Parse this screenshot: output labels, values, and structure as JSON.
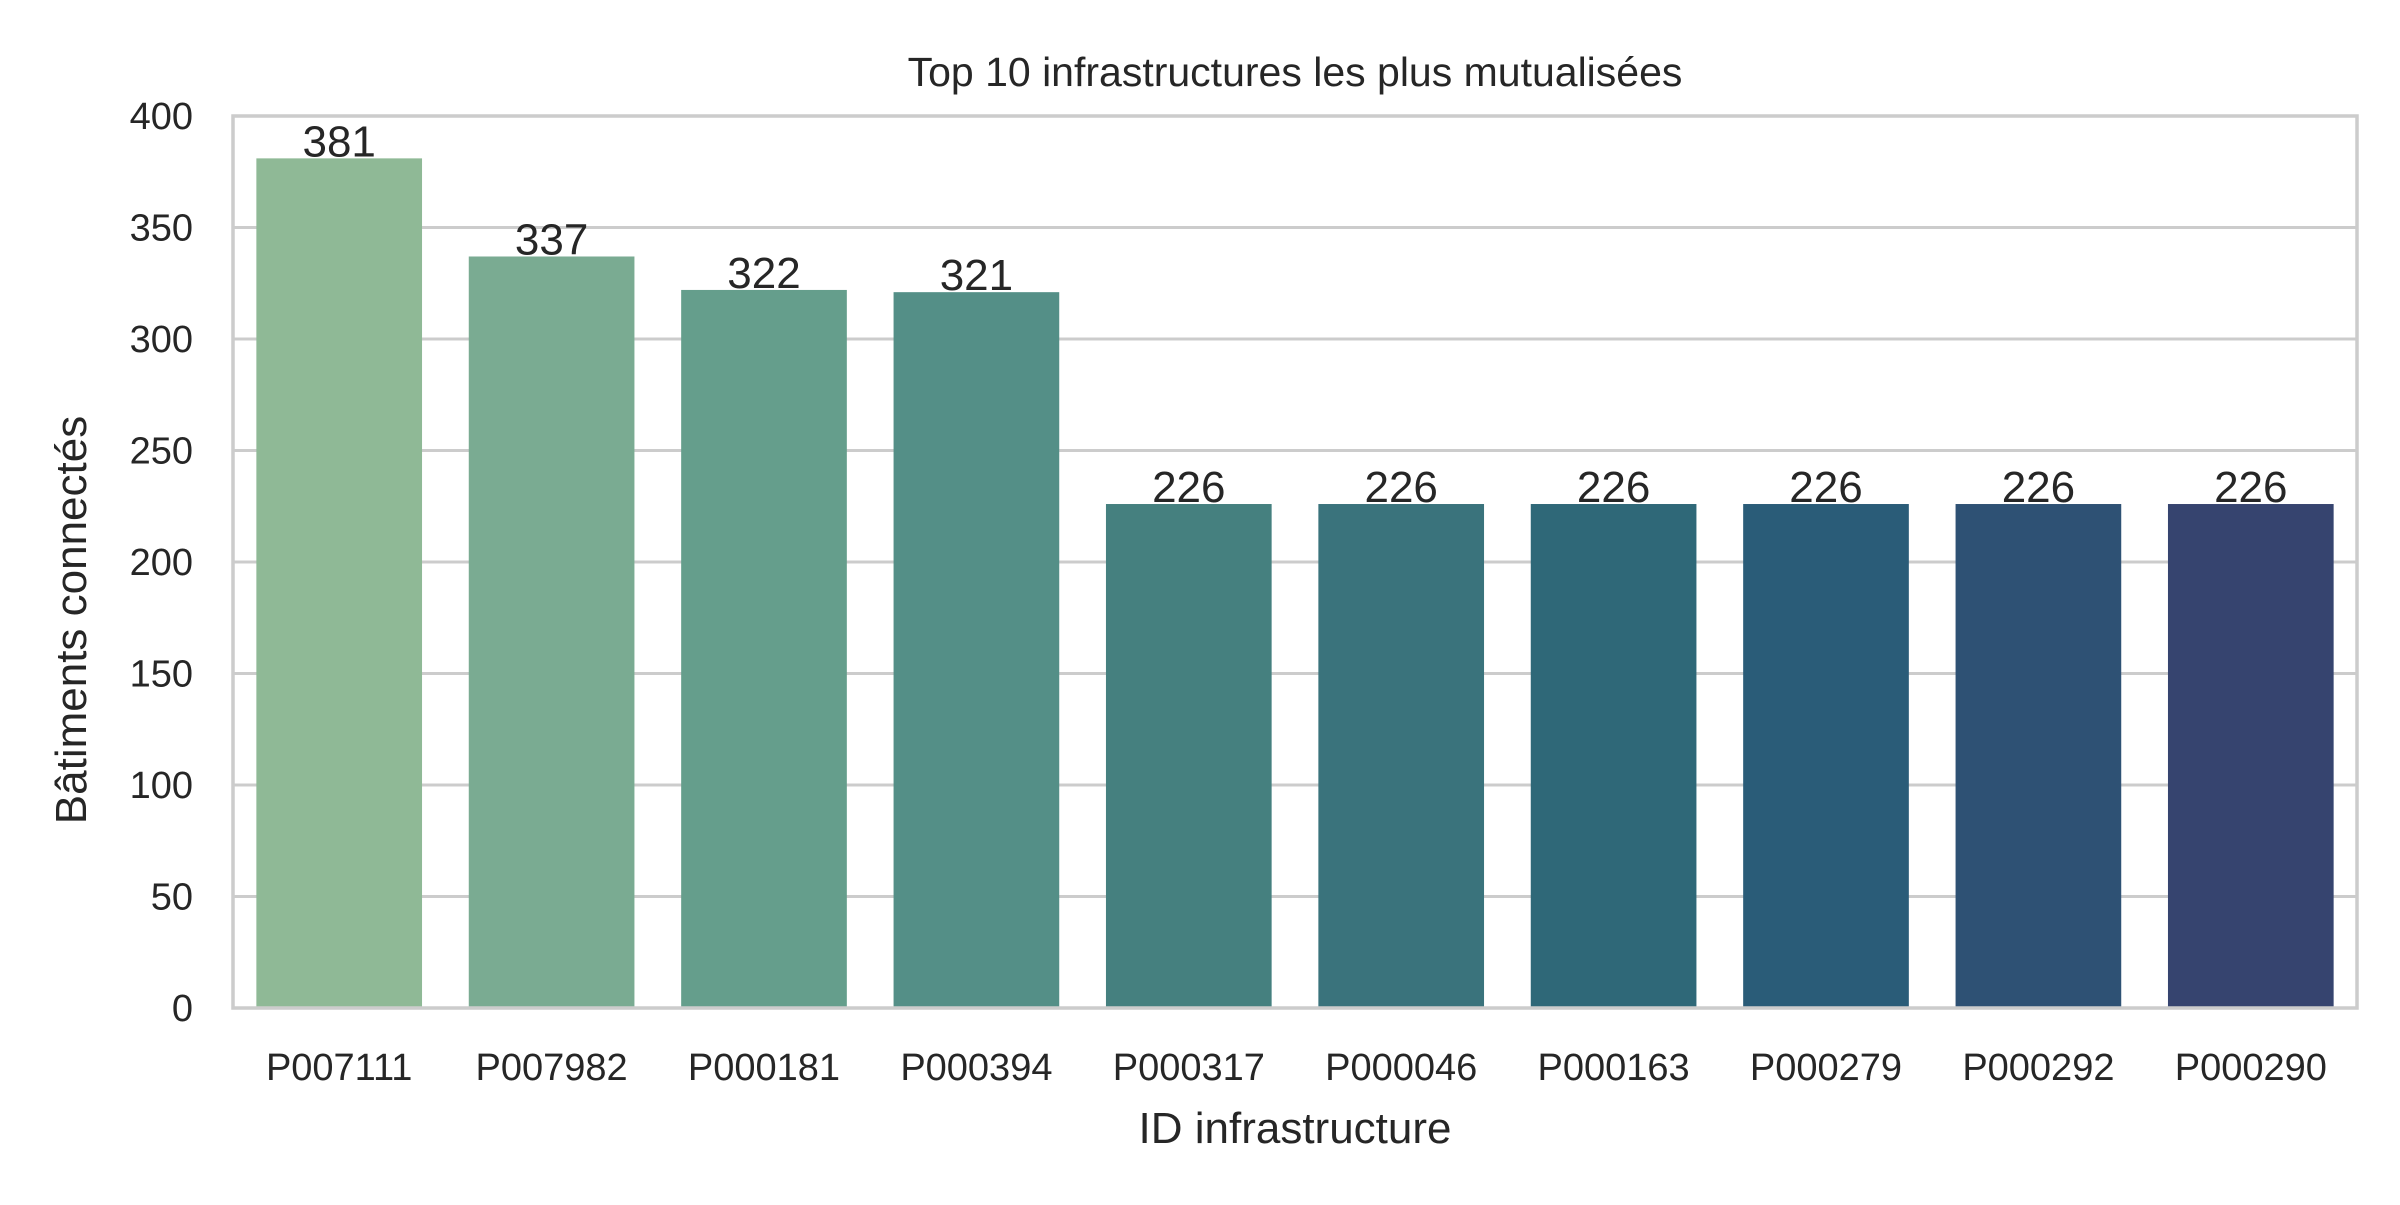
{
  "chart_data": {
    "type": "bar",
    "title": "Top 10 infrastructures les plus mutualisées",
    "xlabel": "ID infrastructure",
    "ylabel": "Bâtiments connectés",
    "categories": [
      "P007111",
      "P007982",
      "P000181",
      "P000394",
      "P000317",
      "P000046",
      "P000163",
      "P000279",
      "P000292",
      "P000290"
    ],
    "values": [
      381,
      337,
      322,
      321,
      226,
      226,
      226,
      226,
      226,
      226
    ],
    "data_labels": [
      "381",
      "337",
      "322",
      "321",
      "226",
      "226",
      "226",
      "226",
      "226",
      "226"
    ],
    "ylim": [
      0,
      400
    ],
    "yticks": [
      0,
      50,
      100,
      150,
      200,
      250,
      300,
      350,
      400
    ],
    "ytick_labels": [
      "0",
      "50",
      "100",
      "150",
      "200",
      "250",
      "300",
      "350",
      "400"
    ],
    "grid": true,
    "grid_axis": "y",
    "colors": [
      "#8fb996",
      "#7aab92",
      "#659e8c",
      "#548f87",
      "#45807f",
      "#3a737c",
      "#2f6878",
      "#2a5c78",
      "#2e5174",
      "#36446f"
    ],
    "grid_color": "#cccccc",
    "frame_color": "#cccccc"
  }
}
